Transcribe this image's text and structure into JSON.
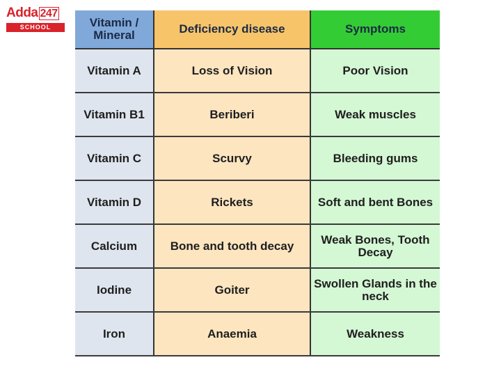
{
  "logo": {
    "brand": "Adda",
    "number": "247",
    "tag": "SCHOOL"
  },
  "colors": {
    "header_col1": "#80a9da",
    "header_col2": "#f7c46a",
    "header_col3": "#34cc35",
    "col1": "#dfe5ee",
    "col2": "#fde5c0",
    "col3": "#d4f7d4",
    "logo_red": "#d9222a"
  },
  "table": {
    "headers": [
      "Vitamin / Mineral",
      "Deficiency disease",
      "Symptoms"
    ],
    "rows": [
      [
        "Vitamin A",
        "Loss of Vision",
        "Poor Vision"
      ],
      [
        "Vitamin B1",
        "Beriberi",
        "Weak muscles"
      ],
      [
        "Vitamin C",
        "Scurvy",
        "Bleeding gums"
      ],
      [
        "Vitamin D",
        "Rickets",
        "Soft and bent Bones"
      ],
      [
        "Calcium",
        "Bone and tooth decay",
        "Weak Bones, Tooth Decay"
      ],
      [
        "Iodine",
        "Goiter",
        "Swollen Glands in the neck"
      ],
      [
        "Iron",
        "Anaemia",
        "Weakness"
      ]
    ]
  }
}
